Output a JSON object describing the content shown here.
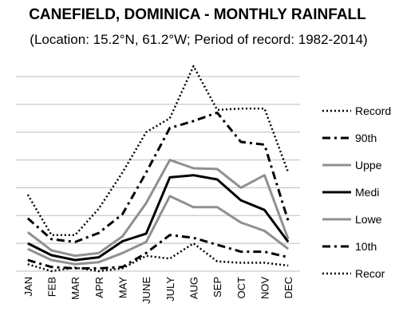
{
  "chart_data": {
    "type": "line",
    "title": "CANEFIELD, DOMINICA - MONTHLY RAINFALL",
    "subtitle": "(Location: 15.2°N, 61.2°W; Period of record: 1982-2014)",
    "xlabel": "",
    "ylabel": "",
    "categories": [
      "JAN",
      "FEB",
      "MAR",
      "APR",
      "MAY",
      "JUNE",
      "JULY",
      "AUG",
      "SEP",
      "OCT",
      "NOV",
      "DEC"
    ],
    "ylim": [
      0,
      280
    ],
    "grid": true,
    "legend_position": "right",
    "series": [
      {
        "name": "Record",
        "style": "dotted",
        "color": "#000000",
        "width": 2.5,
        "values": [
          110,
          52,
          52,
          90,
          142,
          200,
          220,
          295,
          232,
          234,
          234,
          142
        ]
      },
      {
        "name": "90th",
        "style": "dashdot",
        "color": "#000000",
        "width": 3,
        "values": [
          76,
          46,
          42,
          55,
          82,
          142,
          206,
          216,
          228,
          186,
          182,
          72
        ]
      },
      {
        "name": "Uppe",
        "style": "solid",
        "color": "#909090",
        "width": 3,
        "values": [
          56,
          30,
          22,
          26,
          50,
          98,
          160,
          148,
          147,
          120,
          138,
          46
        ]
      },
      {
        "name": "Medi",
        "style": "solid",
        "color": "#000000",
        "width": 3,
        "values": [
          40,
          23,
          16,
          20,
          43,
          54,
          135,
          138,
          132,
          102,
          88,
          42
        ]
      },
      {
        "name": "Lowe",
        "style": "solid",
        "color": "#909090",
        "width": 3,
        "values": [
          32,
          16,
          10,
          13,
          26,
          42,
          108,
          92,
          92,
          70,
          58,
          32
        ]
      },
      {
        "name": "10th",
        "style": "dashdot",
        "color": "#000000",
        "width": 3,
        "values": [
          16,
          6,
          4,
          4,
          6,
          26,
          52,
          48,
          38,
          28,
          28,
          20
        ]
      },
      {
        "name": "Recor",
        "style": "dotted",
        "color": "#000000",
        "width": 2.5,
        "values": [
          10,
          0,
          5,
          0,
          4,
          22,
          18,
          40,
          14,
          12,
          12,
          8
        ]
      }
    ]
  }
}
